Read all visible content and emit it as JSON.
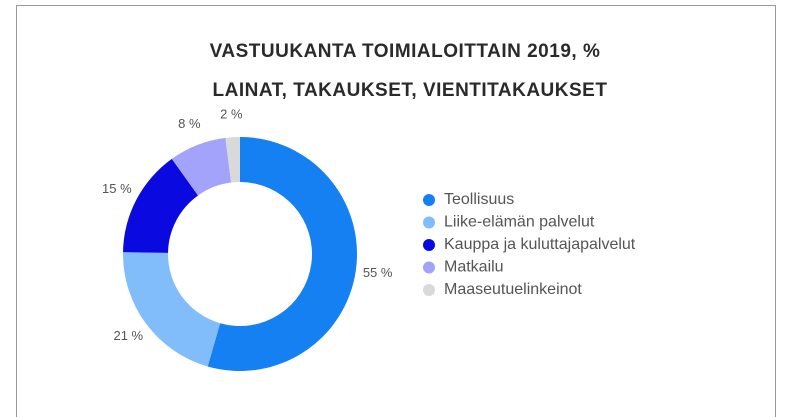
{
  "chart_data": {
    "type": "donut",
    "title": "VASTUUKANTA TOIMIALOITTAIN 2019, %",
    "subtitle": "LAINAT, TAKAUKSET, VIENTITAKAUKSET",
    "categories": [
      "Teollisuus",
      "Liike-elämän palvelut",
      "Kauppa ja kuluttajapalvelut",
      "Matkailu",
      "Maaseutuelinkeinot"
    ],
    "values": [
      55,
      21,
      15,
      8,
      2
    ],
    "value_labels": [
      "55 %",
      "21 %",
      "15 %",
      "8 %",
      "2 %"
    ],
    "colors": [
      "#1580f2",
      "#82bdfb",
      "#0a0ae0",
      "#a3a3fb",
      "#d9d9d9"
    ],
    "legend": "right"
  }
}
